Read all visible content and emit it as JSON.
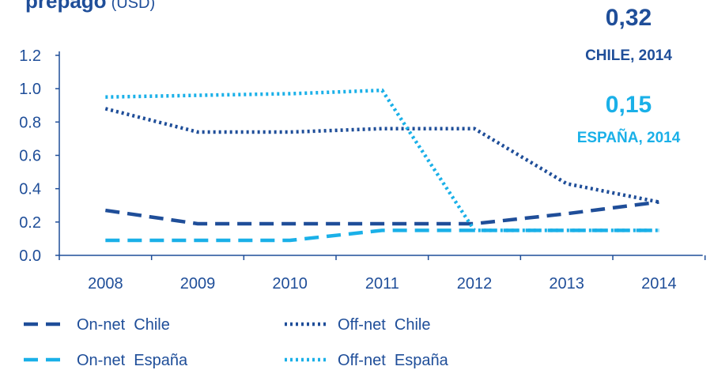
{
  "chart_data": {
    "type": "line",
    "title": "prepago",
    "subtitle": "(USD)",
    "categories": [
      "2008",
      "2009",
      "2010",
      "2011",
      "2012",
      "2013",
      "2014"
    ],
    "series": [
      {
        "name": "On-net  Chile",
        "color": "#1f4e99",
        "style": "dashed",
        "values": [
          0.27,
          0.19,
          0.19,
          0.19,
          0.19,
          0.25,
          0.32
        ]
      },
      {
        "name": "Off-net  Chile",
        "color": "#1f4e99",
        "style": "dotted",
        "values": [
          0.88,
          0.74,
          0.74,
          0.76,
          0.76,
          0.43,
          0.32
        ]
      },
      {
        "name": "On-net  España",
        "color": "#1ab0e8",
        "style": "dashed",
        "values": [
          0.09,
          0.09,
          0.09,
          0.15,
          0.15,
          0.15,
          0.15
        ]
      },
      {
        "name": "Off-net  España",
        "color": "#1ab0e8",
        "style": "dotted",
        "values": [
          0.95,
          0.96,
          0.97,
          0.99,
          0.15,
          0.15,
          0.15
        ]
      }
    ],
    "ylim": [
      0,
      1.2
    ],
    "yticks": [
      {
        "value": 0,
        "label": "0.0"
      },
      0.2,
      0.4,
      0.6,
      0.8,
      {
        "value": 1,
        "label": "1.0"
      },
      1.2
    ],
    "annotations": [
      {
        "value": "0,32",
        "label": "CHILE, 2014",
        "color": "#1f4e99"
      },
      {
        "value": "0,15",
        "label": "ESPAÑA, 2014",
        "color": "#1ab0e8"
      }
    ]
  }
}
